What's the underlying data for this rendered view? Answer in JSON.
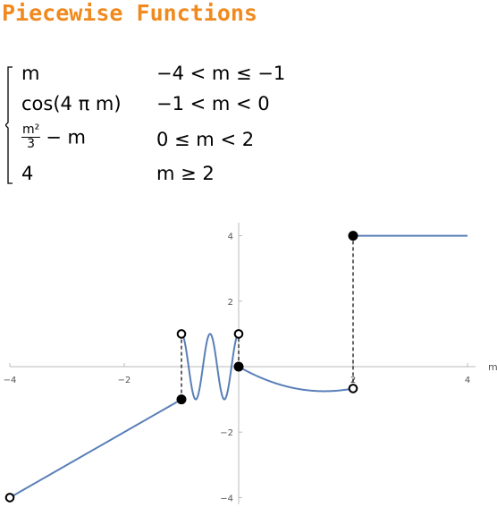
{
  "title": "Piecewise Functions",
  "pieces": [
    {
      "expr": "m",
      "cond": "−4 < m ≤ −1"
    },
    {
      "expr": "cos(4 π m)",
      "cond": "−1 < m < 0"
    },
    {
      "expr_num": "m²",
      "expr_den": "3",
      "expr_tail": "− m",
      "cond": "0 ≤ m < 2"
    },
    {
      "expr": "4",
      "cond": "m ≥ 2"
    }
  ],
  "chart_data": {
    "type": "line",
    "xlabel": "m",
    "ylabel": "",
    "xlim": [
      -4,
      4
    ],
    "ylim": [
      -4.2,
      4.4
    ],
    "x_ticks": [
      -4,
      -2,
      2,
      4
    ],
    "y_ticks": [
      -4,
      -2,
      2,
      4
    ],
    "x_tick_labels": [
      "−4",
      "−2",
      "2",
      "4"
    ],
    "y_tick_labels": [
      "−4",
      "−2",
      "2",
      "4"
    ],
    "series_color": "#5a7fb8",
    "segments": [
      {
        "formula": "m",
        "domain": [
          -4,
          -1
        ]
      },
      {
        "formula": "cos(4*pi*m)",
        "domain": [
          -1,
          0
        ]
      },
      {
        "formula": "m^2/3 - m",
        "domain": [
          0,
          2
        ]
      },
      {
        "formula": "4",
        "domain": [
          2,
          4
        ]
      }
    ],
    "open_points": [
      [
        -4,
        -4
      ],
      [
        -1,
        1
      ],
      [
        0,
        1
      ],
      [
        2,
        -0.667
      ]
    ],
    "closed_points": [
      [
        -1,
        -1
      ],
      [
        0,
        0
      ],
      [
        2,
        4
      ]
    ],
    "jumps": [
      {
        "x": -1,
        "y1": -1,
        "y2": 1
      },
      {
        "x": 0,
        "y1": 0,
        "y2": 1
      },
      {
        "x": 2,
        "y1": -0.667,
        "y2": 4
      }
    ]
  }
}
